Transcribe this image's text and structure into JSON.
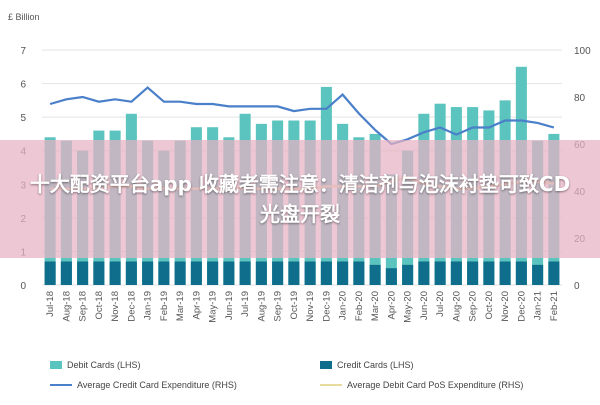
{
  "overlay": {
    "text": "十大配资平台app   收藏者需注意：清洁剂与泡沫衬垫可致CD光盘开裂"
  },
  "chart_data": {
    "type": "bar",
    "left_axis_label": "£ Billion",
    "left_ticks": [
      "0",
      "1",
      "2",
      "3",
      "4",
      "5",
      "6",
      "7"
    ],
    "right_ticks": [
      "0",
      "20",
      "40",
      "60",
      "80",
      "100"
    ],
    "ylim_left": [
      0,
      7
    ],
    "ylim_right": [
      0,
      100
    ],
    "categories": [
      "Jul-18",
      "Aug-18",
      "Sep-18",
      "Oct-18",
      "Nov-18",
      "Dec-18",
      "Jan-19",
      "Feb-19",
      "Mar-19",
      "Apr-19",
      "May-19",
      "Jun-19",
      "Jul-19",
      "Aug-19",
      "Sep-19",
      "Oct-19",
      "Nov-19",
      "Dec-19",
      "Jan-20",
      "Feb-20",
      "Mar-20",
      "Apr-20",
      "May-20",
      "Jun-20",
      "Jul-20",
      "Aug-20",
      "Sep-20",
      "Oct-20",
      "Nov-20",
      "Dec-20",
      "Jan-21",
      "Feb-21"
    ],
    "series": [
      {
        "name": "Debit Cards (LHS)",
        "axis": "left",
        "kind": "bar",
        "color": "#5bc4be",
        "values": [
          4.4,
          4.3,
          4.0,
          4.6,
          4.6,
          5.1,
          4.3,
          4.0,
          4.3,
          4.7,
          4.7,
          4.4,
          5.1,
          4.8,
          4.9,
          4.9,
          4.9,
          5.9,
          4.8,
          4.4,
          4.5,
          3.3,
          4.0,
          5.1,
          5.4,
          5.3,
          5.3,
          5.2,
          5.5,
          6.5,
          4.3,
          4.5
        ]
      },
      {
        "name": "Credit Cards (LHS)",
        "axis": "left",
        "kind": "bar",
        "color": "#0e6e8c",
        "values": [
          0.7,
          0.7,
          0.7,
          0.7,
          0.7,
          0.7,
          0.7,
          0.7,
          0.7,
          0.7,
          0.7,
          0.7,
          0.7,
          0.7,
          0.7,
          0.7,
          0.7,
          0.7,
          0.7,
          0.7,
          0.6,
          0.5,
          0.6,
          0.7,
          0.7,
          0.7,
          0.7,
          0.7,
          0.7,
          0.7,
          0.6,
          0.7
        ]
      },
      {
        "name": "Average Credit Card Expenditure (RHS)",
        "axis": "right",
        "kind": "line",
        "color": "#4a7fc9",
        "values": [
          77,
          79,
          80,
          78,
          79,
          78,
          84,
          78,
          78,
          77,
          77,
          76,
          76,
          76,
          76,
          74,
          75,
          75,
          81,
          73,
          66,
          60,
          62,
          65,
          67,
          64,
          67,
          67,
          70,
          70,
          69,
          67
        ]
      },
      {
        "name": "Average Debit Card PoS Expenditure (RHS)",
        "axis": "right",
        "kind": "line",
        "color": "#e6dca0",
        "values": [
          41,
          41,
          41,
          41,
          42,
          42,
          41,
          41,
          41,
          41,
          41,
          41,
          41,
          41,
          41,
          41,
          41,
          42,
          42,
          42,
          42,
          44,
          46,
          43,
          42,
          41,
          41,
          42,
          43,
          44,
          44,
          43
        ]
      }
    ],
    "legend_position": "bottom",
    "grid": true
  }
}
